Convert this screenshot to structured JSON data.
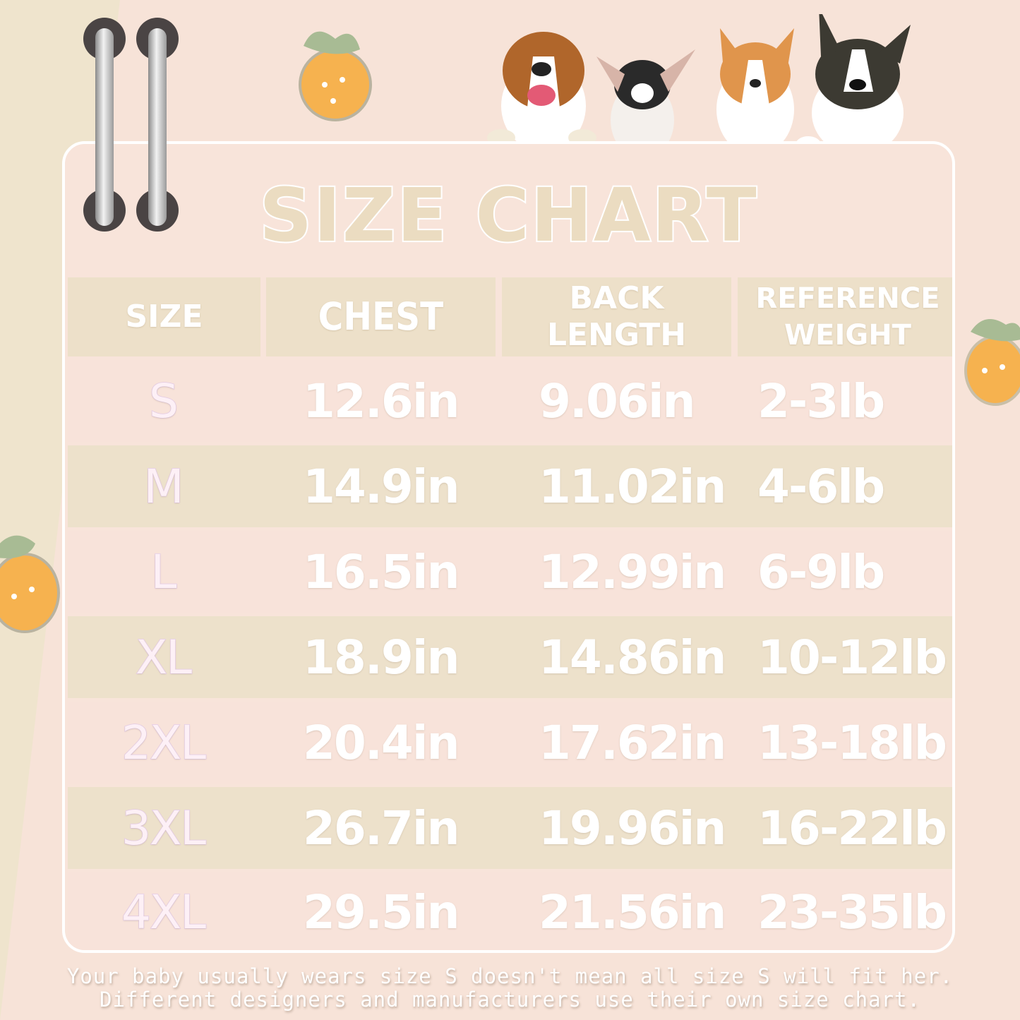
{
  "title": "SIZE CHART",
  "colors": {
    "background": "#f7e3d8",
    "beige": "#ede1cb",
    "pink": "#f8e3da",
    "text": "#ffffff"
  },
  "decorations": [
    "binder-ring-icon",
    "strawberry-icon",
    "dog-photo-icon"
  ],
  "table": {
    "headers": [
      "SIZE",
      "CHEST",
      "BACK LENGTH",
      "REFERENCE WEIGHT"
    ],
    "rows": [
      [
        "S",
        "12.6in",
        "9.06in",
        "2-3lb"
      ],
      [
        "M",
        "14.9in",
        "11.02in",
        "4-6lb"
      ],
      [
        "L",
        "16.5in",
        "12.99in",
        "6-9lb"
      ],
      [
        "XL",
        "18.9in",
        "14.86in",
        "10-12lb"
      ],
      [
        "2XL",
        "20.4in",
        "17.62in",
        "13-18lb"
      ],
      [
        "3XL",
        "26.7in",
        "19.96in",
        "16-22lb"
      ],
      [
        "4XL",
        "29.5in",
        "21.56in",
        "23-35lb"
      ]
    ]
  },
  "note": {
    "line1": "Your baby usually wears size S doesn't mean all size S will fit her.",
    "line2": "Different designers and manufacturers use their own size chart."
  }
}
